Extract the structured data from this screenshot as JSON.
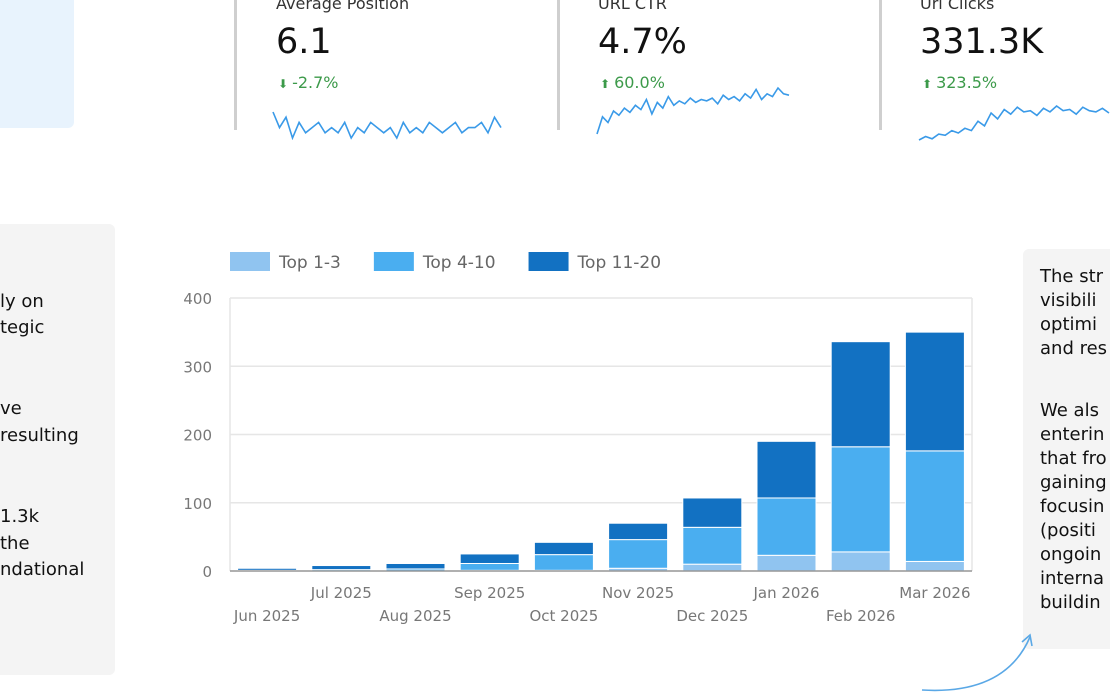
{
  "kpis": [
    {
      "title": "Average Position",
      "value": "6.1",
      "delta": "-2.7%",
      "direction": "down",
      "spark": [
        10,
        7,
        9,
        5,
        8,
        6,
        7,
        8,
        6,
        7,
        6,
        8,
        5,
        7,
        6,
        8,
        7,
        6,
        7,
        5,
        8,
        6,
        7,
        6,
        8,
        7,
        6,
        7,
        8,
        6,
        7,
        7,
        8,
        6,
        9,
        7
      ]
    },
    {
      "title": "URL CTR",
      "value": "4.7%",
      "delta": "60.0%",
      "direction": "up",
      "spark": [
        2,
        14,
        10,
        18,
        15,
        20,
        17,
        22,
        19,
        26,
        16,
        24,
        20,
        28,
        22,
        25,
        23,
        27,
        24,
        26,
        25,
        27,
        23,
        29,
        26,
        28,
        25,
        30,
        27,
        33,
        26,
        30,
        28,
        34,
        30,
        29
      ]
    },
    {
      "title": "Url Clicks",
      "value": "331.3K",
      "delta": "323.5%",
      "direction": "up",
      "spark": [
        2,
        5,
        3,
        7,
        6,
        10,
        8,
        12,
        10,
        18,
        14,
        25,
        20,
        28,
        24,
        30,
        26,
        27,
        23,
        29,
        26,
        31,
        27,
        28,
        24,
        30,
        27,
        26,
        29,
        25
      ]
    }
  ],
  "left_panel": {
    "lines": [
      "ly on",
      "tegic",
      "",
      "ve",
      " resulting",
      "",
      "1.3k",
      "the",
      "ndational"
    ]
  },
  "right_panel": {
    "lines": [
      "The str",
      "visibili",
      "optimi",
      "and res",
      "",
      "We als",
      "enterin",
      "that fro",
      "gaining",
      "focusin",
      "(positi",
      "ongoin",
      "interna",
      "buildin"
    ]
  },
  "chart_data": {
    "type": "bar",
    "stacked": true,
    "categories": [
      "Jun 2025",
      "Jul 2025",
      "Aug 2025",
      "Sep 2025",
      "Oct 2025",
      "Nov 2025",
      "Dec 2025",
      "Jan 2026",
      "Feb 2026",
      "Mar 2026"
    ],
    "series": [
      {
        "name": "Top 1-3",
        "color": "#90c4f0",
        "values": [
          0,
          0,
          0,
          1,
          1,
          4,
          10,
          23,
          28,
          14
        ]
      },
      {
        "name": "Top 4-10",
        "color": "#4aaef0",
        "values": [
          1,
          2,
          3,
          10,
          23,
          42,
          54,
          84,
          154,
          162
        ]
      },
      {
        "name": "Top 11-20",
        "color": "#1271c2",
        "values": [
          3,
          6,
          8,
          14,
          18,
          24,
          43,
          83,
          154,
          174
        ]
      }
    ],
    "ylim": [
      0,
      400
    ],
    "yticks": [
      0,
      100,
      200,
      300,
      400
    ],
    "grid": true,
    "legend": "top-left"
  }
}
